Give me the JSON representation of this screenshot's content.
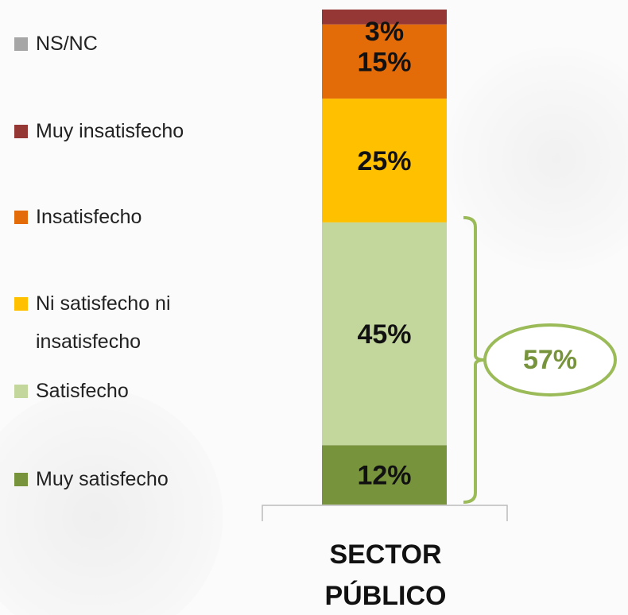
{
  "chart_data": {
    "type": "stacked_bar",
    "categories": [
      "SECTOR PÚBLICO"
    ],
    "ylim": [
      0,
      100
    ],
    "series": [
      {
        "name": "NS/NC",
        "color": "#a6a6a6",
        "values": [
          0
        ]
      },
      {
        "name": "Muy insatisfecho",
        "color": "#953735",
        "values": [
          3
        ],
        "value_labels": [
          "3%"
        ]
      },
      {
        "name": "Insatisfecho",
        "color": "#e36c09",
        "values": [
          15
        ],
        "value_labels": [
          "15%"
        ]
      },
      {
        "name": "Ni satisfecho ni insatisfecho",
        "color": "#ffc000",
        "values": [
          25
        ],
        "value_labels": [
          "25%"
        ]
      },
      {
        "name": "Satisfecho",
        "color": "#c3d69b",
        "values": [
          45
        ],
        "value_labels": [
          "45%"
        ]
      },
      {
        "name": "Muy satisfecho",
        "color": "#77933c",
        "values": [
          12
        ],
        "value_labels": [
          "12%"
        ]
      }
    ],
    "annotations": [
      {
        "text": "57%",
        "color": "#77933c"
      }
    ]
  }
}
